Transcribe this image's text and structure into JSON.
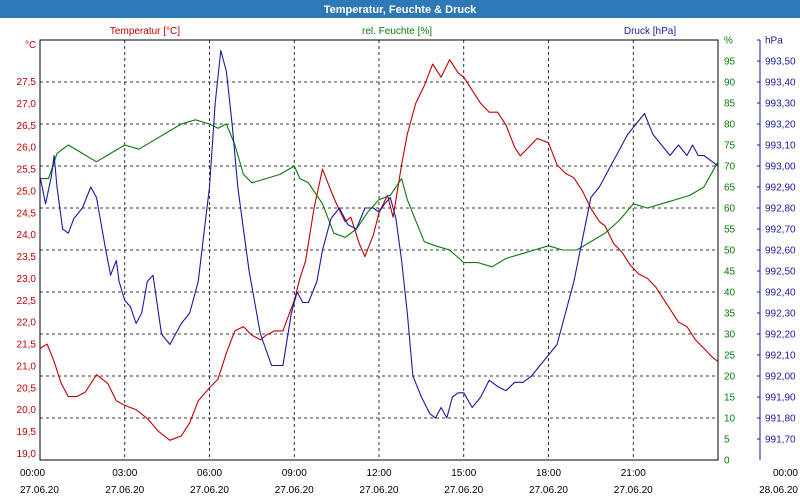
{
  "window": {
    "title": "Temperatur, Feuchte & Druck"
  },
  "colors": {
    "title_bar": "#2e78b8",
    "temperature": "#c00000",
    "humidity": "#0a7a0a",
    "pressure": "#1a1aa0"
  },
  "chart_data": {
    "type": "line",
    "title": "Temperatur, Feuchte & Druck",
    "grid": true,
    "x_ticks": [
      {
        "time": "00:00",
        "date": "27.06.20"
      },
      {
        "time": "03:00",
        "date": "27.06.20"
      },
      {
        "time": "06:00",
        "date": "27.06.20"
      },
      {
        "time": "09:00",
        "date": "27.06.20"
      },
      {
        "time": "12:00",
        "date": "27.06.20"
      },
      {
        "time": "15:00",
        "date": "27.06.20"
      },
      {
        "time": "18:00",
        "date": "27.06.20"
      },
      {
        "time": "21:00",
        "date": "27.06.20"
      },
      {
        "time": "00:00",
        "date": "28.06.20"
      }
    ],
    "axes": {
      "temperature": {
        "unit": "°C",
        "ylim": [
          18.85,
          28.45
        ],
        "ticks": [
          "19,0",
          "19,5",
          "20,0",
          "20,5",
          "21,0",
          "21,5",
          "22,0",
          "22,5",
          "23,0",
          "23,5",
          "24,0",
          "24,5",
          "25,0",
          "25,5",
          "26,0",
          "26,5",
          "27,0",
          "27,5"
        ]
      },
      "humidity": {
        "unit": "%",
        "ylim": [
          0,
          100
        ],
        "ticks": [
          "0",
          "5",
          "10",
          "15",
          "20",
          "25",
          "30",
          "35",
          "40",
          "45",
          "50",
          "55",
          "60",
          "65",
          "70",
          "75",
          "80",
          "85",
          "90",
          "95",
          "%"
        ]
      },
      "pressure": {
        "unit": "hPa",
        "ylim": [
          991.6,
          993.6
        ],
        "ticks": [
          "991,70",
          "991,80",
          "991,90",
          "992,00",
          "992,10",
          "992,20",
          "992,30",
          "992,40",
          "992,50",
          "992,60",
          "992,70",
          "992,80",
          "992,90",
          "993,00",
          "993,10",
          "993,20",
          "993,30",
          "993,40",
          "993,50",
          "hPa"
        ]
      }
    },
    "series": [
      {
        "name": "Temperatur [°C]",
        "axis": "temperature",
        "x": [
          0,
          0.25,
          0.5,
          0.75,
          1,
          1.3,
          1.6,
          2,
          2.4,
          2.7,
          3,
          3.4,
          3.8,
          4.2,
          4.6,
          5,
          5.3,
          5.6,
          6,
          6.3,
          6.6,
          6.9,
          7.2,
          7.5,
          7.8,
          8,
          8.3,
          8.6,
          9,
          9.2,
          9.4,
          9.7,
          10,
          10.3,
          10.5,
          10.8,
          11,
          11.3,
          11.5,
          11.8,
          12,
          12.3,
          12.5,
          12.8,
          13,
          13.3,
          13.6,
          13.9,
          14.2,
          14.5,
          14.8,
          15,
          15.3,
          15.6,
          15.9,
          16.2,
          16.5,
          16.8,
          17,
          17.3,
          17.6,
          18,
          18.3,
          18.6,
          18.9,
          19.2,
          19.5,
          19.8,
          20,
          20.3,
          20.6,
          20.9,
          21.2,
          21.5,
          21.8,
          22,
          22.3,
          22.6,
          22.9,
          23.2,
          23.5,
          23.8,
          24
        ],
        "values": [
          21.4,
          21.5,
          21.1,
          20.6,
          20.3,
          20.3,
          20.4,
          20.8,
          20.6,
          20.2,
          20.1,
          20.0,
          19.8,
          19.5,
          19.3,
          19.4,
          19.7,
          20.2,
          20.5,
          20.7,
          21.3,
          21.8,
          21.9,
          21.7,
          21.6,
          21.7,
          21.8,
          21.8,
          22.5,
          23.0,
          23.4,
          24.6,
          25.5,
          25.0,
          24.7,
          24.3,
          24.4,
          23.8,
          23.5,
          24.0,
          24.5,
          24.9,
          24.4,
          25.6,
          26.3,
          27.0,
          27.4,
          27.9,
          27.6,
          28.0,
          27.7,
          27.6,
          27.3,
          27.0,
          26.8,
          26.8,
          26.5,
          26.0,
          25.8,
          26.0,
          26.2,
          26.1,
          25.6,
          25.4,
          25.3,
          25.0,
          24.6,
          24.3,
          24.2,
          23.8,
          23.6,
          23.3,
          23.1,
          23.0,
          22.8,
          22.6,
          22.3,
          22.0,
          21.9,
          21.6,
          21.4,
          21.2,
          21.1
        ]
      },
      {
        "name": "rel. Feuchte [%]",
        "axis": "humidity",
        "x": [
          0,
          0.3,
          0.6,
          1,
          1.5,
          2,
          2.5,
          3,
          3.5,
          4,
          4.5,
          5,
          5.5,
          6,
          6.3,
          6.6,
          6.9,
          7.2,
          7.5,
          8,
          8.5,
          9,
          9.2,
          9.5,
          10,
          10.4,
          10.8,
          11.2,
          11.6,
          12,
          12.4,
          12.8,
          13,
          13.3,
          13.6,
          14,
          14.5,
          15,
          15.5,
          16,
          16.5,
          17,
          17.5,
          18,
          18.5,
          19,
          19.5,
          20,
          20.5,
          21,
          21.5,
          22,
          22.5,
          23,
          23.5,
          24
        ],
        "values": [
          67,
          67,
          73,
          75,
          73,
          71,
          73,
          75,
          74,
          76,
          78,
          80,
          81,
          80,
          79,
          80,
          75,
          68,
          66,
          67,
          68,
          70,
          67,
          66,
          61,
          54,
          53,
          55,
          59,
          62,
          63,
          67,
          62,
          57,
          52,
          51,
          50,
          47,
          47,
          46,
          48,
          49,
          50,
          51,
          50,
          50,
          52,
          54,
          57,
          61,
          60,
          61,
          62,
          63,
          65,
          71
        ]
      },
      {
        "name": "Druck [hPa]",
        "axis": "pressure",
        "x": [
          0,
          0.2,
          0.4,
          0.5,
          0.6,
          0.8,
          1,
          1.2,
          1.5,
          1.8,
          2,
          2.3,
          2.5,
          2.7,
          2.8,
          3,
          3.2,
          3.4,
          3.6,
          3.8,
          4.0,
          4.3,
          4.6,
          5,
          5.3,
          5.6,
          6,
          6.2,
          6.4,
          6.6,
          6.8,
          7,
          7.2,
          7.4,
          7.8,
          8.2,
          8.6,
          8.9,
          9.1,
          9.3,
          9.5,
          9.8,
          10,
          10.3,
          10.6,
          10.9,
          11.2,
          11.5,
          11.8,
          12,
          12.2,
          12.4,
          12.6,
          12.8,
          13,
          13.2,
          13.5,
          13.8,
          14,
          14.2,
          14.4,
          14.6,
          14.8,
          15,
          15.3,
          15.6,
          15.9,
          16.2,
          16.5,
          16.8,
          17.1,
          17.4,
          17.7,
          18,
          18.3,
          18.6,
          18.9,
          19.2,
          19.5,
          19.8,
          20,
          20.2,
          20.4,
          20.6,
          20.8,
          21.1,
          21.4,
          21.7,
          22,
          22.3,
          22.6,
          22.9,
          23.1,
          23.3,
          23.5,
          23.8,
          24
        ],
        "values": [
          992.95,
          992.82,
          992.95,
          993.05,
          992.9,
          992.7,
          992.68,
          992.75,
          992.8,
          992.9,
          992.85,
          992.62,
          992.48,
          992.55,
          992.45,
          992.36,
          992.33,
          992.25,
          992.3,
          992.45,
          992.48,
          992.2,
          992.15,
          992.25,
          992.3,
          992.45,
          992.9,
          993.3,
          993.55,
          993.45,
          993.2,
          992.9,
          992.7,
          992.5,
          992.2,
          992.05,
          992.05,
          992.3,
          992.4,
          992.35,
          992.35,
          992.45,
          992.6,
          992.75,
          992.8,
          992.72,
          992.7,
          992.8,
          992.8,
          992.78,
          992.82,
          992.85,
          992.75,
          992.55,
          992.3,
          992.0,
          991.9,
          991.82,
          991.8,
          991.85,
          991.8,
          991.9,
          991.92,
          991.92,
          991.85,
          991.9,
          991.98,
          991.95,
          991.93,
          991.97,
          991.97,
          992.0,
          992.05,
          992.1,
          992.15,
          992.3,
          992.45,
          992.65,
          992.85,
          992.9,
          992.95,
          993.0,
          993.05,
          993.1,
          993.15,
          993.2,
          993.25,
          993.15,
          993.1,
          993.05,
          993.1,
          993.05,
          993.1,
          993.05,
          993.05,
          993.02,
          993.0
        ]
      }
    ]
  }
}
